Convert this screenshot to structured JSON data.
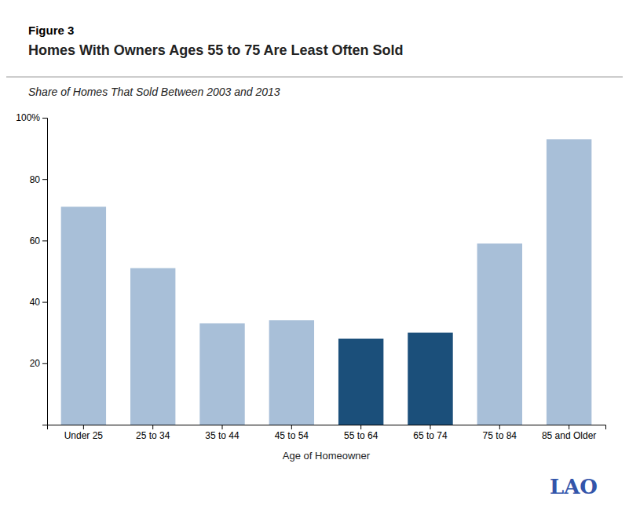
{
  "chart_data": {
    "type": "bar",
    "title": "Homes With Owners Ages 55 to 75 Are Least Often Sold",
    "subtitle": "Share of Homes That Sold Between 2003 and 2013",
    "xlabel": "Age of Homeowner",
    "annotations": [
      "Figure 3",
      "LAO"
    ],
    "categories": [
      "Under 25",
      "25 to 34",
      "35 to 44",
      "45 to 54",
      "55 to 64",
      "65 to 74",
      "75 to 84",
      "85 and Older"
    ],
    "values": [
      71,
      51,
      33,
      34,
      28,
      30,
      59,
      93
    ],
    "colors": [
      "#a8bfd8",
      "#a8bfd8",
      "#a8bfd8",
      "#a8bfd8",
      "#1b4f7a",
      "#1b4f7a",
      "#a8bfd8",
      "#a8bfd8"
    ],
    "ylim": [
      0,
      100
    ],
    "yticks": [
      20,
      40,
      60,
      80,
      {
        "value": 100,
        "label": "100%"
      }
    ],
    "grid": false
  }
}
